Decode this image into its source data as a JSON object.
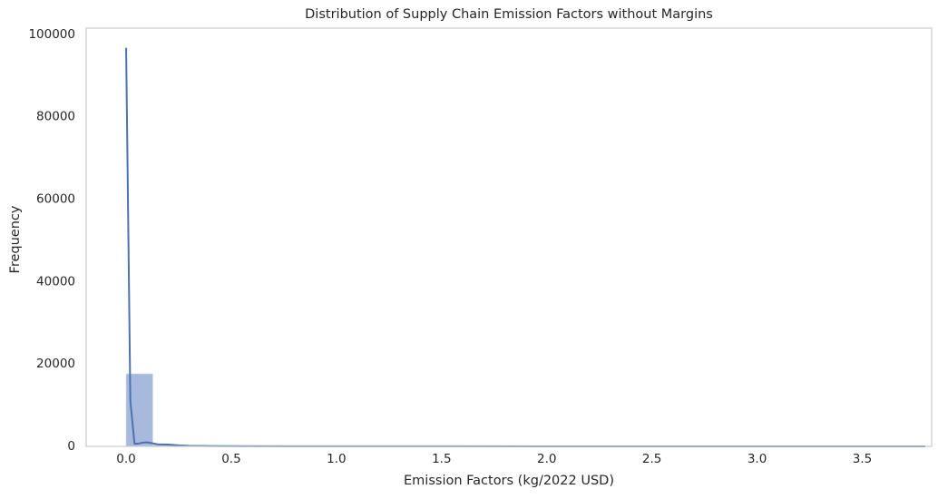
{
  "chart_data": {
    "type": "bar",
    "title": "Distribution of Supply Chain Emission Factors without Margins",
    "xlabel": "Emission Factors (kg/2022 USD)",
    "ylabel": "Frequency",
    "xlim": [
      -0.19,
      3.83
    ],
    "ylim": [
      0,
      101500
    ],
    "xticks": [
      "0.0",
      "0.5",
      "1.0",
      "1.5",
      "2.0",
      "2.5",
      "3.0",
      "3.5"
    ],
    "yticks": [
      "0",
      "20000",
      "40000",
      "60000",
      "80000",
      "100000"
    ],
    "grid": false,
    "bin_width": 0.1265,
    "bins": [
      {
        "x0": 0.0,
        "count": 17600
      },
      {
        "x0": 0.1265,
        "count": 350
      },
      {
        "x0": 0.253,
        "count": 220
      },
      {
        "x0": 0.3795,
        "count": 140
      },
      {
        "x0": 0.506,
        "count": 70
      },
      {
        "x0": 0.6325,
        "count": 40
      },
      {
        "x0": 0.759,
        "count": 25
      },
      {
        "x0": 0.8855,
        "count": 15
      },
      {
        "x0": 1.012,
        "count": 10
      },
      {
        "x0": 1.1385,
        "count": 8
      },
      {
        "x0": 1.265,
        "count": 5
      },
      {
        "x0": 1.3915,
        "count": 4
      },
      {
        "x0": 1.518,
        "count": 3
      },
      {
        "x0": 1.6445,
        "count": 3
      },
      {
        "x0": 1.771,
        "count": 2
      },
      {
        "x0": 1.8975,
        "count": 2
      },
      {
        "x0": 2.024,
        "count": 2
      },
      {
        "x0": 2.1505,
        "count": 1
      },
      {
        "x0": 2.277,
        "count": 1
      },
      {
        "x0": 2.4035,
        "count": 1
      },
      {
        "x0": 2.53,
        "count": 1
      },
      {
        "x0": 2.6565,
        "count": 1
      },
      {
        "x0": 2.783,
        "count": 1
      },
      {
        "x0": 2.9095,
        "count": 1
      },
      {
        "x0": 3.036,
        "count": 1
      },
      {
        "x0": 3.1625,
        "count": 1
      },
      {
        "x0": 3.289,
        "count": 1
      },
      {
        "x0": 3.4155,
        "count": 1
      },
      {
        "x0": 3.542,
        "count": 1
      },
      {
        "x0": 3.6685,
        "count": 1
      }
    ],
    "kde": {
      "x": [
        0.0,
        0.02,
        0.04,
        0.06,
        0.08,
        0.1,
        0.12,
        0.15,
        0.2,
        0.25,
        0.3,
        0.4,
        0.5,
        0.75,
        1.0,
        1.5,
        2.0,
        2.5,
        3.0,
        3.5,
        3.8
      ],
      "y": [
        96700,
        11000,
        600,
        700,
        900,
        1000,
        800,
        500,
        450,
        250,
        150,
        80,
        60,
        30,
        20,
        15,
        10,
        10,
        8,
        6,
        5
      ]
    },
    "colors": {
      "bar_fill": "#9db3d9",
      "bar_stroke": "#c7d3ea",
      "line": "#4c72b0",
      "axis": "#cccccc"
    }
  }
}
